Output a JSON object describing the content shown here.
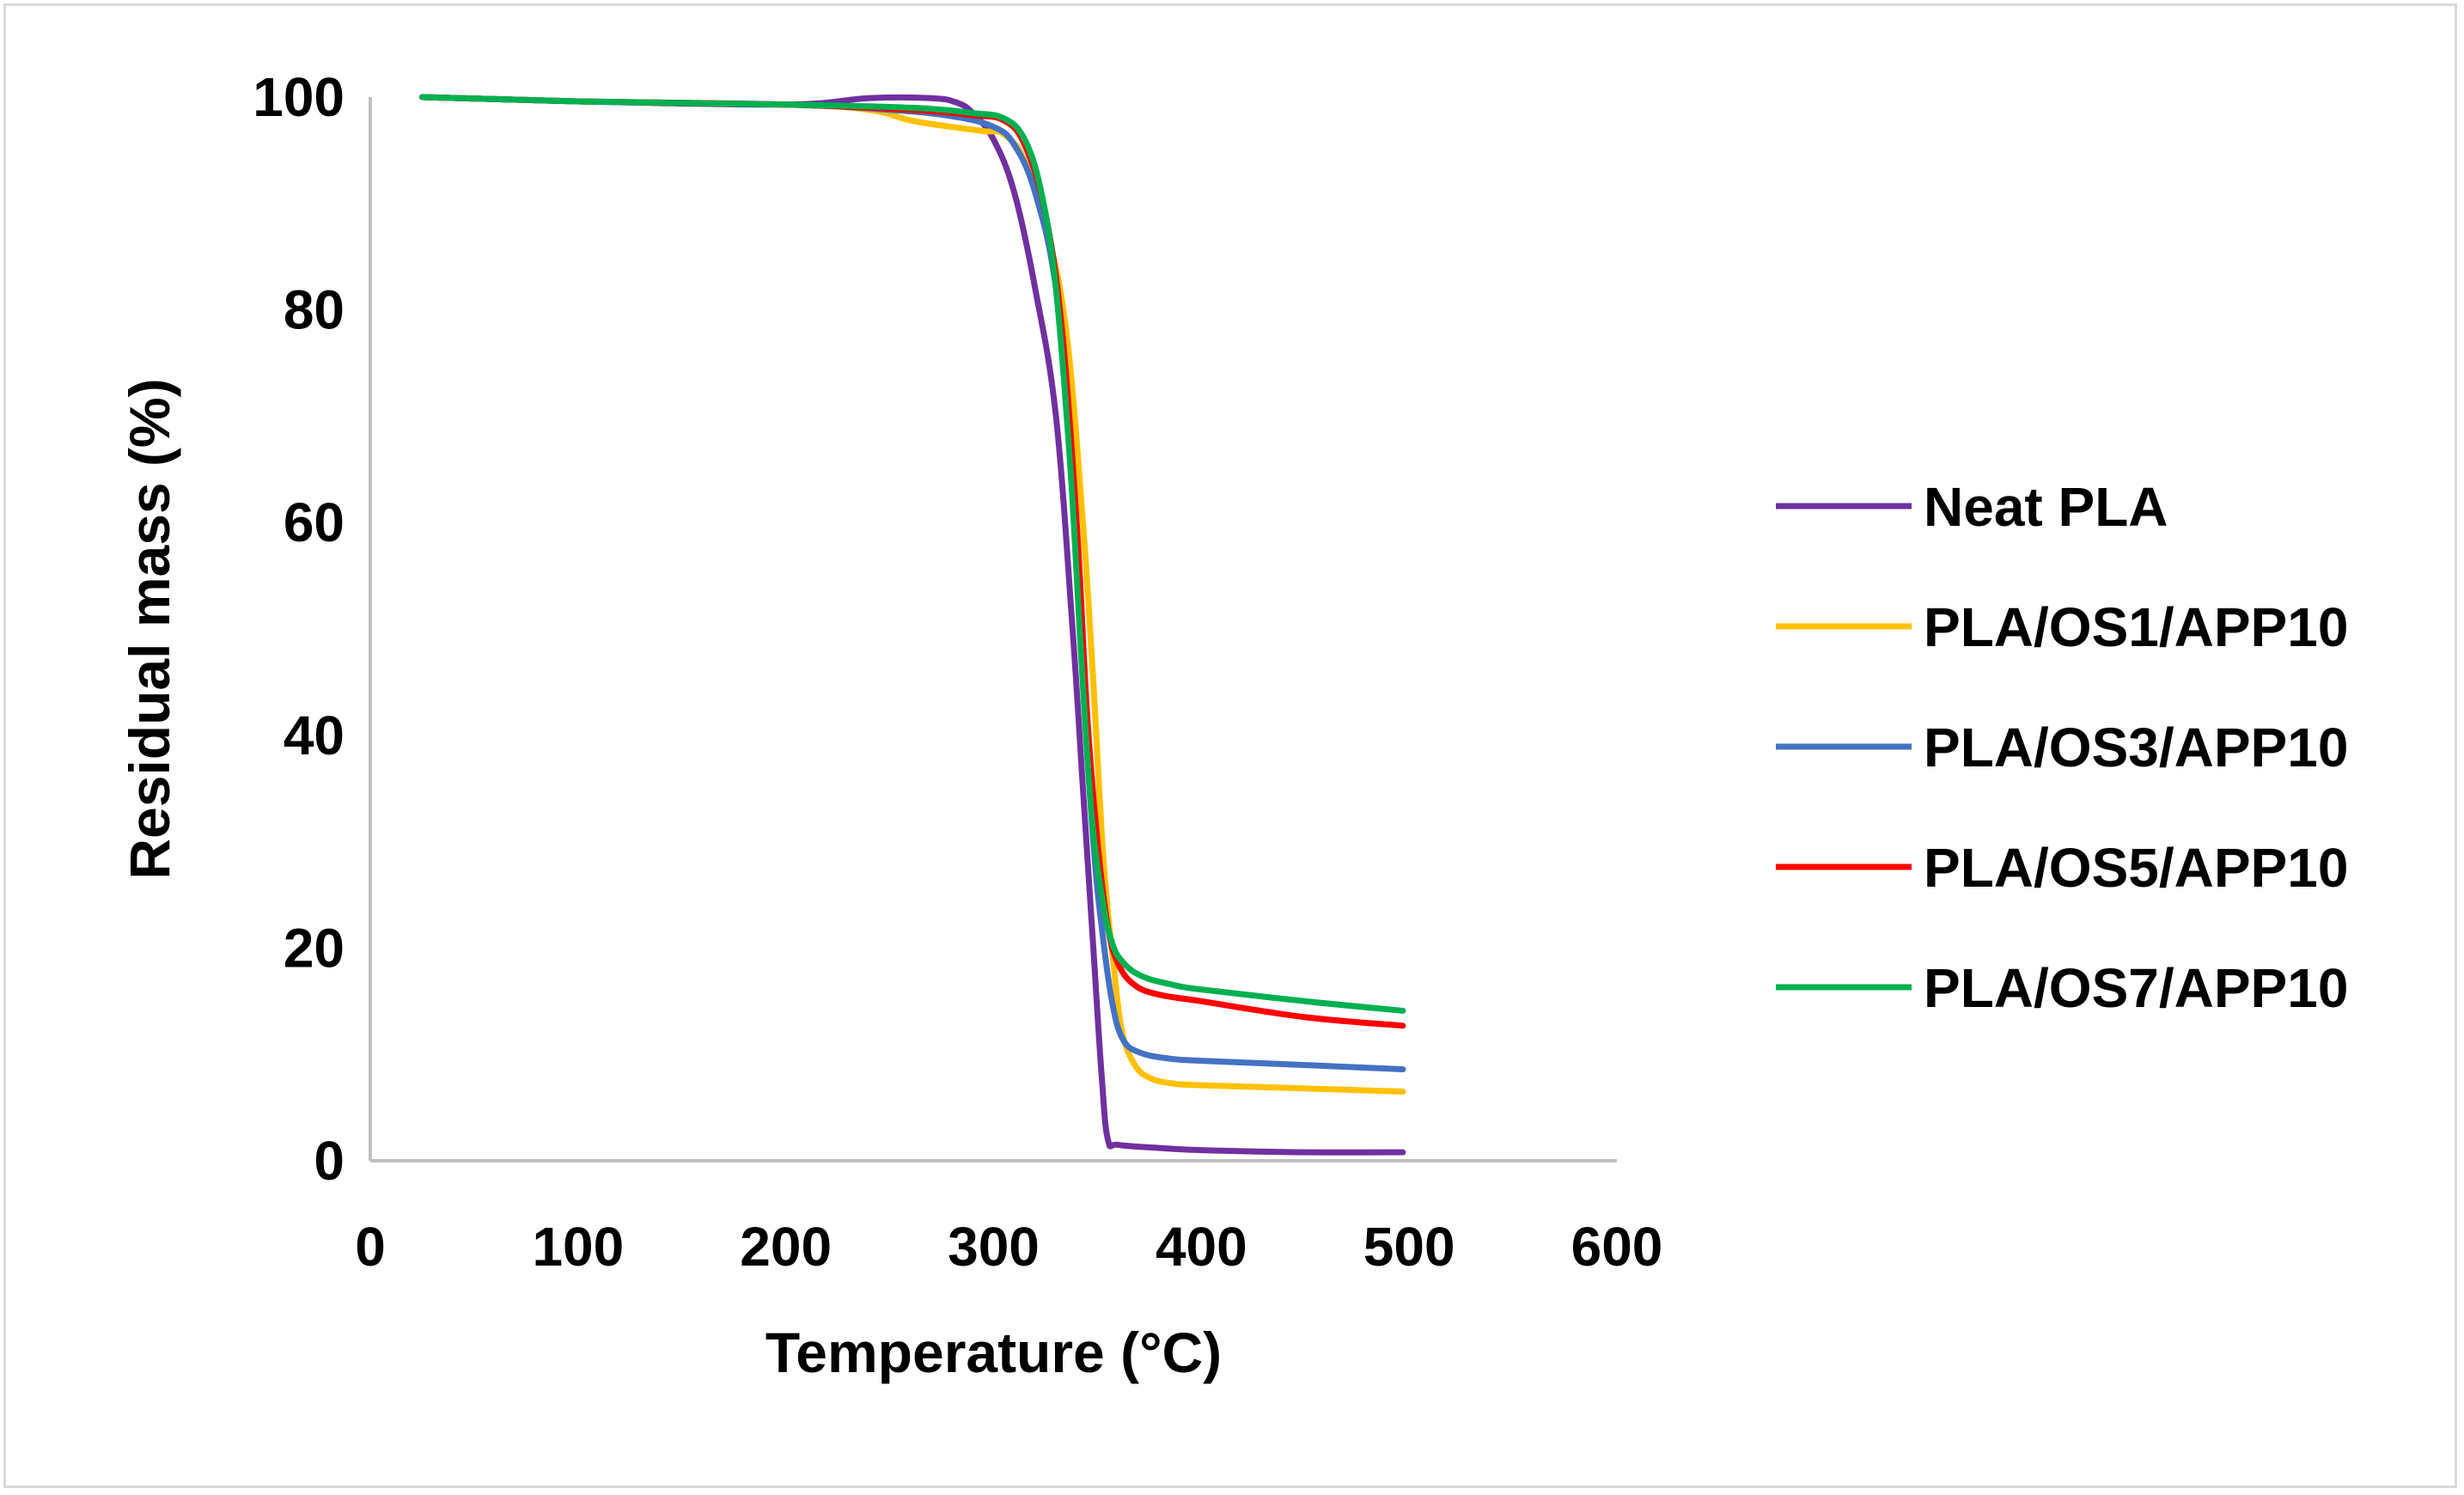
{
  "chart_data": {
    "type": "line",
    "title": "",
    "xlabel": "Temperature (°C)",
    "ylabel": "Residual mass (%)",
    "xlim": [
      0,
      600
    ],
    "ylim": [
      0,
      100
    ],
    "xticks": [
      0,
      100,
      200,
      300,
      400,
      500,
      600
    ],
    "yticks": [
      0,
      20,
      40,
      60,
      80,
      100
    ],
    "grid": false,
    "legend_position": "right",
    "series": [
      {
        "name": "Neat PLA",
        "color": "#7030A0",
        "points": [
          [
            25,
            100
          ],
          [
            100,
            99.6
          ],
          [
            200,
            99.3
          ],
          [
            240,
            99.9
          ],
          [
            270,
            99.9
          ],
          [
            282,
            99.5
          ],
          [
            290,
            98.5
          ],
          [
            300,
            96
          ],
          [
            310,
            91
          ],
          [
            320,
            82
          ],
          [
            330,
            70
          ],
          [
            338,
            50
          ],
          [
            343,
            35
          ],
          [
            348,
            20
          ],
          [
            352,
            8
          ],
          [
            355,
            2
          ],
          [
            360,
            1.5
          ],
          [
            380,
            1.2
          ],
          [
            400,
            1.0
          ],
          [
            450,
            0.8
          ],
          [
            497,
            0.8
          ]
        ]
      },
      {
        "name": "PLA/OS1/APP10",
        "color": "#FFC000",
        "points": [
          [
            25,
            100
          ],
          [
            100,
            99.6
          ],
          [
            200,
            99.3
          ],
          [
            240,
            98.8
          ],
          [
            260,
            97.8
          ],
          [
            280,
            97.2
          ],
          [
            295,
            96.8
          ],
          [
            305,
            96.5
          ],
          [
            315,
            94
          ],
          [
            325,
            88
          ],
          [
            335,
            78
          ],
          [
            343,
            60
          ],
          [
            348,
            45
          ],
          [
            353,
            28
          ],
          [
            358,
            18
          ],
          [
            362,
            12
          ],
          [
            368,
            9
          ],
          [
            375,
            7.8
          ],
          [
            385,
            7.3
          ],
          [
            400,
            7.1
          ],
          [
            450,
            6.8
          ],
          [
            497,
            6.5
          ]
        ]
      },
      {
        "name": "PLA/OS3/APP10",
        "color": "#4472C4",
        "points": [
          [
            25,
            100
          ],
          [
            100,
            99.6
          ],
          [
            200,
            99.3
          ],
          [
            250,
            98.8
          ],
          [
            280,
            98.2
          ],
          [
            300,
            97.2
          ],
          [
            310,
            95.5
          ],
          [
            320,
            91
          ],
          [
            330,
            82
          ],
          [
            338,
            65
          ],
          [
            343,
            45
          ],
          [
            348,
            30
          ],
          [
            352,
            22
          ],
          [
            357,
            15
          ],
          [
            362,
            11.5
          ],
          [
            370,
            10.2
          ],
          [
            385,
            9.6
          ],
          [
            400,
            9.4
          ],
          [
            450,
            9.0
          ],
          [
            497,
            8.6
          ]
        ]
      },
      {
        "name": "PLA/OS5/APP10",
        "color": "#FF0000",
        "points": [
          [
            25,
            100
          ],
          [
            100,
            99.6
          ],
          [
            200,
            99.3
          ],
          [
            260,
            98.8
          ],
          [
            290,
            98.3
          ],
          [
            305,
            97.8
          ],
          [
            315,
            95.5
          ],
          [
            325,
            89
          ],
          [
            333,
            78
          ],
          [
            340,
            60
          ],
          [
            345,
            42
          ],
          [
            350,
            30
          ],
          [
            355,
            22
          ],
          [
            360,
            18.5
          ],
          [
            368,
            16.5
          ],
          [
            380,
            15.6
          ],
          [
            400,
            15.0
          ],
          [
            450,
            13.5
          ],
          [
            497,
            12.7
          ]
        ]
      },
      {
        "name": "PLA/OS7/APP10",
        "color": "#00B050",
        "points": [
          [
            25,
            100
          ],
          [
            100,
            99.6
          ],
          [
            200,
            99.3
          ],
          [
            260,
            99.0
          ],
          [
            290,
            98.5
          ],
          [
            305,
            98.0
          ],
          [
            315,
            96
          ],
          [
            323,
            91
          ],
          [
            330,
            82
          ],
          [
            337,
            65
          ],
          [
            342,
            48
          ],
          [
            347,
            33
          ],
          [
            352,
            25
          ],
          [
            357,
            20.5
          ],
          [
            363,
            18.5
          ],
          [
            372,
            17.3
          ],
          [
            385,
            16.6
          ],
          [
            400,
            16.1
          ],
          [
            450,
            15.0
          ],
          [
            497,
            14.1
          ]
        ]
      }
    ]
  }
}
